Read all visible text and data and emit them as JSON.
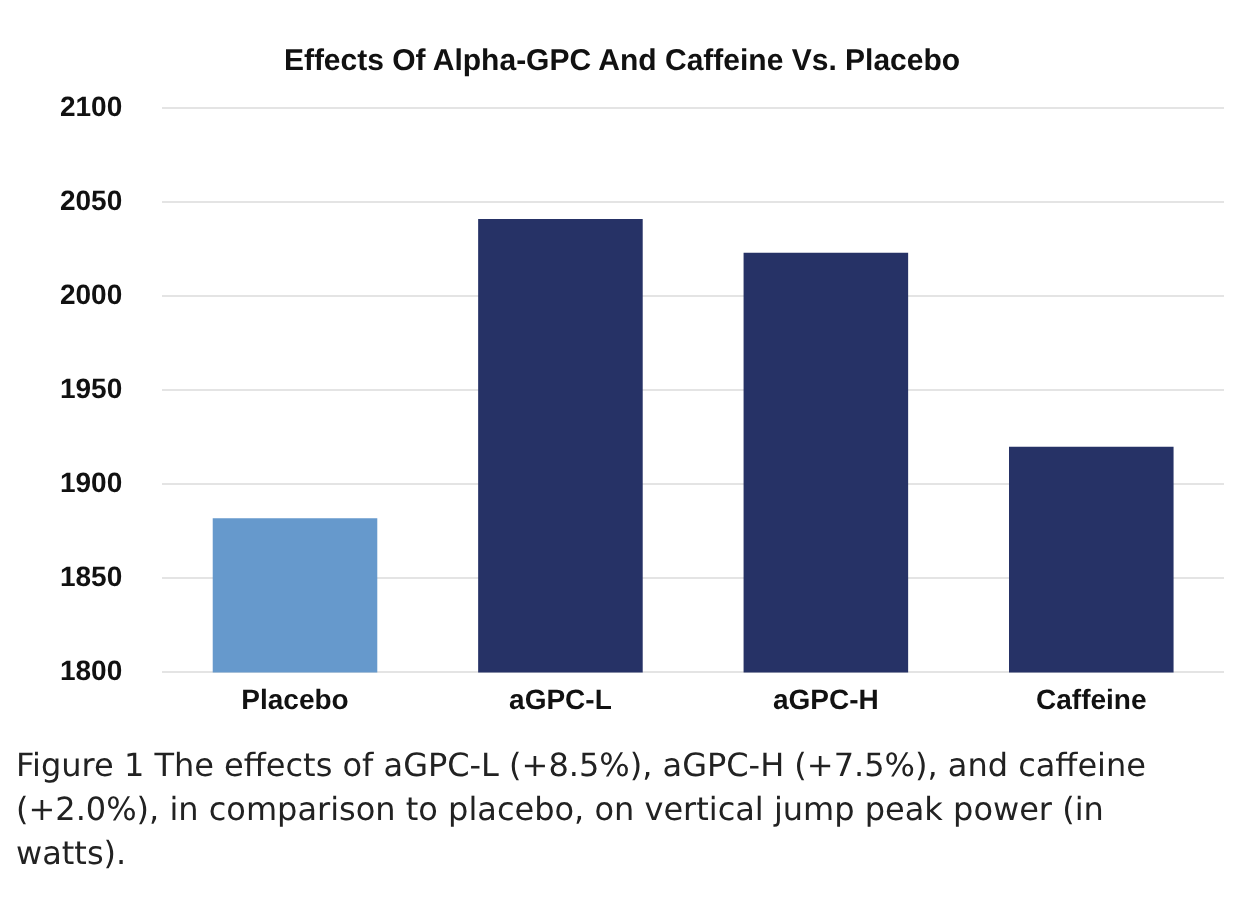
{
  "chart_data": {
    "type": "bar",
    "title": "Effects Of Alpha-GPC And Caffeine Vs. Placebo",
    "categories": [
      "Placebo",
      "aGPC-L",
      "aGPC-H",
      "Caffeine"
    ],
    "values": [
      1882,
      2041,
      2023,
      1920
    ],
    "colors": [
      "#6699cc",
      "#263266",
      "#263266",
      "#263266"
    ],
    "ylim": [
      1800,
      2100
    ],
    "yticks": [
      1800,
      1850,
      1900,
      1950,
      2000,
      2050,
      2100
    ],
    "grid": "y",
    "annotations": [
      "Figure 1 The effects of aGPC-L (+8.5%), aGPC-H (+7.5%), and caffeine (+2.0%), in comparison to placebo, on vertical jump peak power (in watts)."
    ]
  }
}
